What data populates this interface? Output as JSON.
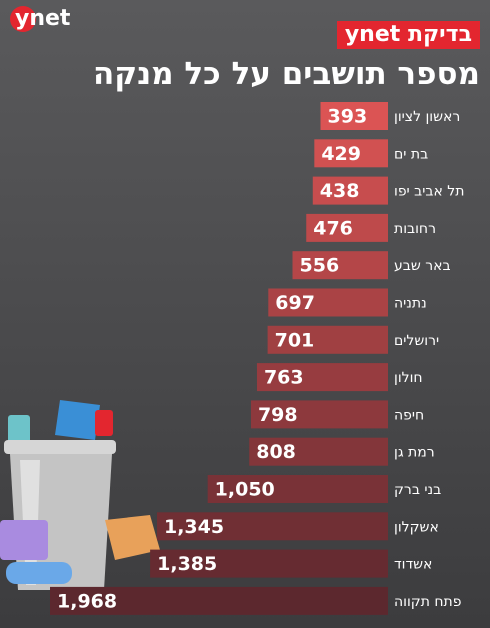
{
  "logo": "ynet",
  "chart_data": {
    "type": "bar",
    "orientation": "horizontal",
    "tag": "בדיקת ynet",
    "title": "מספר תושבים על כל מנקה",
    "categories": [
      "ראשון לציון",
      "בת ים",
      "תל אביב יפו",
      "רחובות",
      "באר שבע",
      "נתניה",
      "ירושלים",
      "חולון",
      "חיפה",
      "רמת גן",
      "בני ברק",
      "אשקלון",
      "אשדוד",
      "פתח תקווה"
    ],
    "values": [
      393,
      429,
      438,
      476,
      556,
      697,
      701,
      763,
      798,
      808,
      1050,
      1345,
      1385,
      1968
    ],
    "value_labels": [
      "393",
      "429",
      "438",
      "476",
      "556",
      "697",
      "701",
      "763",
      "798",
      "808",
      "1,050",
      "1,345",
      "1,385",
      "1,968"
    ]
  }
}
